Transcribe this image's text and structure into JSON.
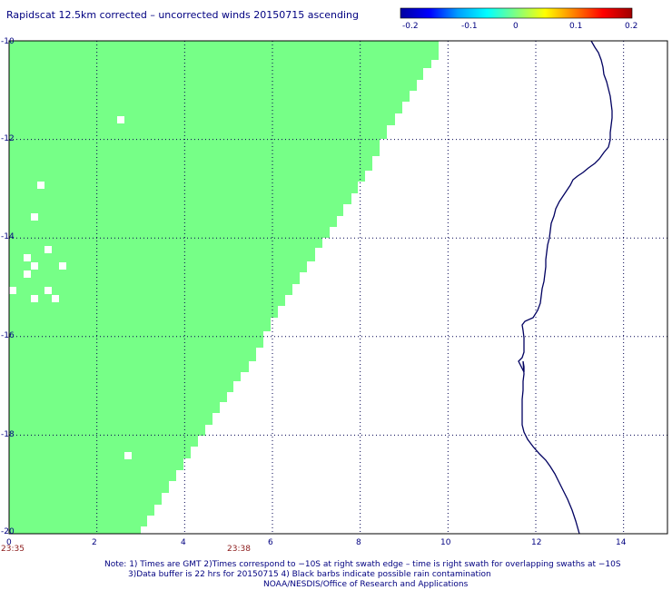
{
  "title": "Rapidscat 12.5km corrected – uncorrected winds 20150715 ascending",
  "colorbar": {
    "tick_labels": [
      "-0.2",
      "-0.1",
      "0",
      "0.1",
      "0.2"
    ],
    "colors": [
      "#0000a0",
      "#0000ff",
      "#00a0ff",
      "#00ffff",
      "#80ff80",
      "#ffff00",
      "#ff8000",
      "#ff0000",
      "#a00000"
    ]
  },
  "map_data": {
    "x_range": [
      0,
      15
    ],
    "y_range": [
      -20,
      -10
    ],
    "x_tick_labels": [
      "0",
      "2",
      "4",
      "6",
      "8",
      "10",
      "12",
      "14"
    ],
    "y_tick_labels": [
      "-10",
      "-12",
      "-14",
      "-16",
      "-18",
      "-20"
    ],
    "swath_color": "#76ff87",
    "swath_value": 0,
    "coastline_color": "#000060",
    "grid": true,
    "time_labels": [
      "23:35",
      "23:38"
    ]
  },
  "notes": [
    "Note: 1) Times are GMT  2)Times correspond to −10S at right swath edge – time is right swath for overlapping swaths at −10S",
    "3)Data buffer is 22 hrs for 20150715  4) Black barbs indicate possible rain contamination",
    "NOAA/NESDIS/Office of Research and Applications"
  ]
}
